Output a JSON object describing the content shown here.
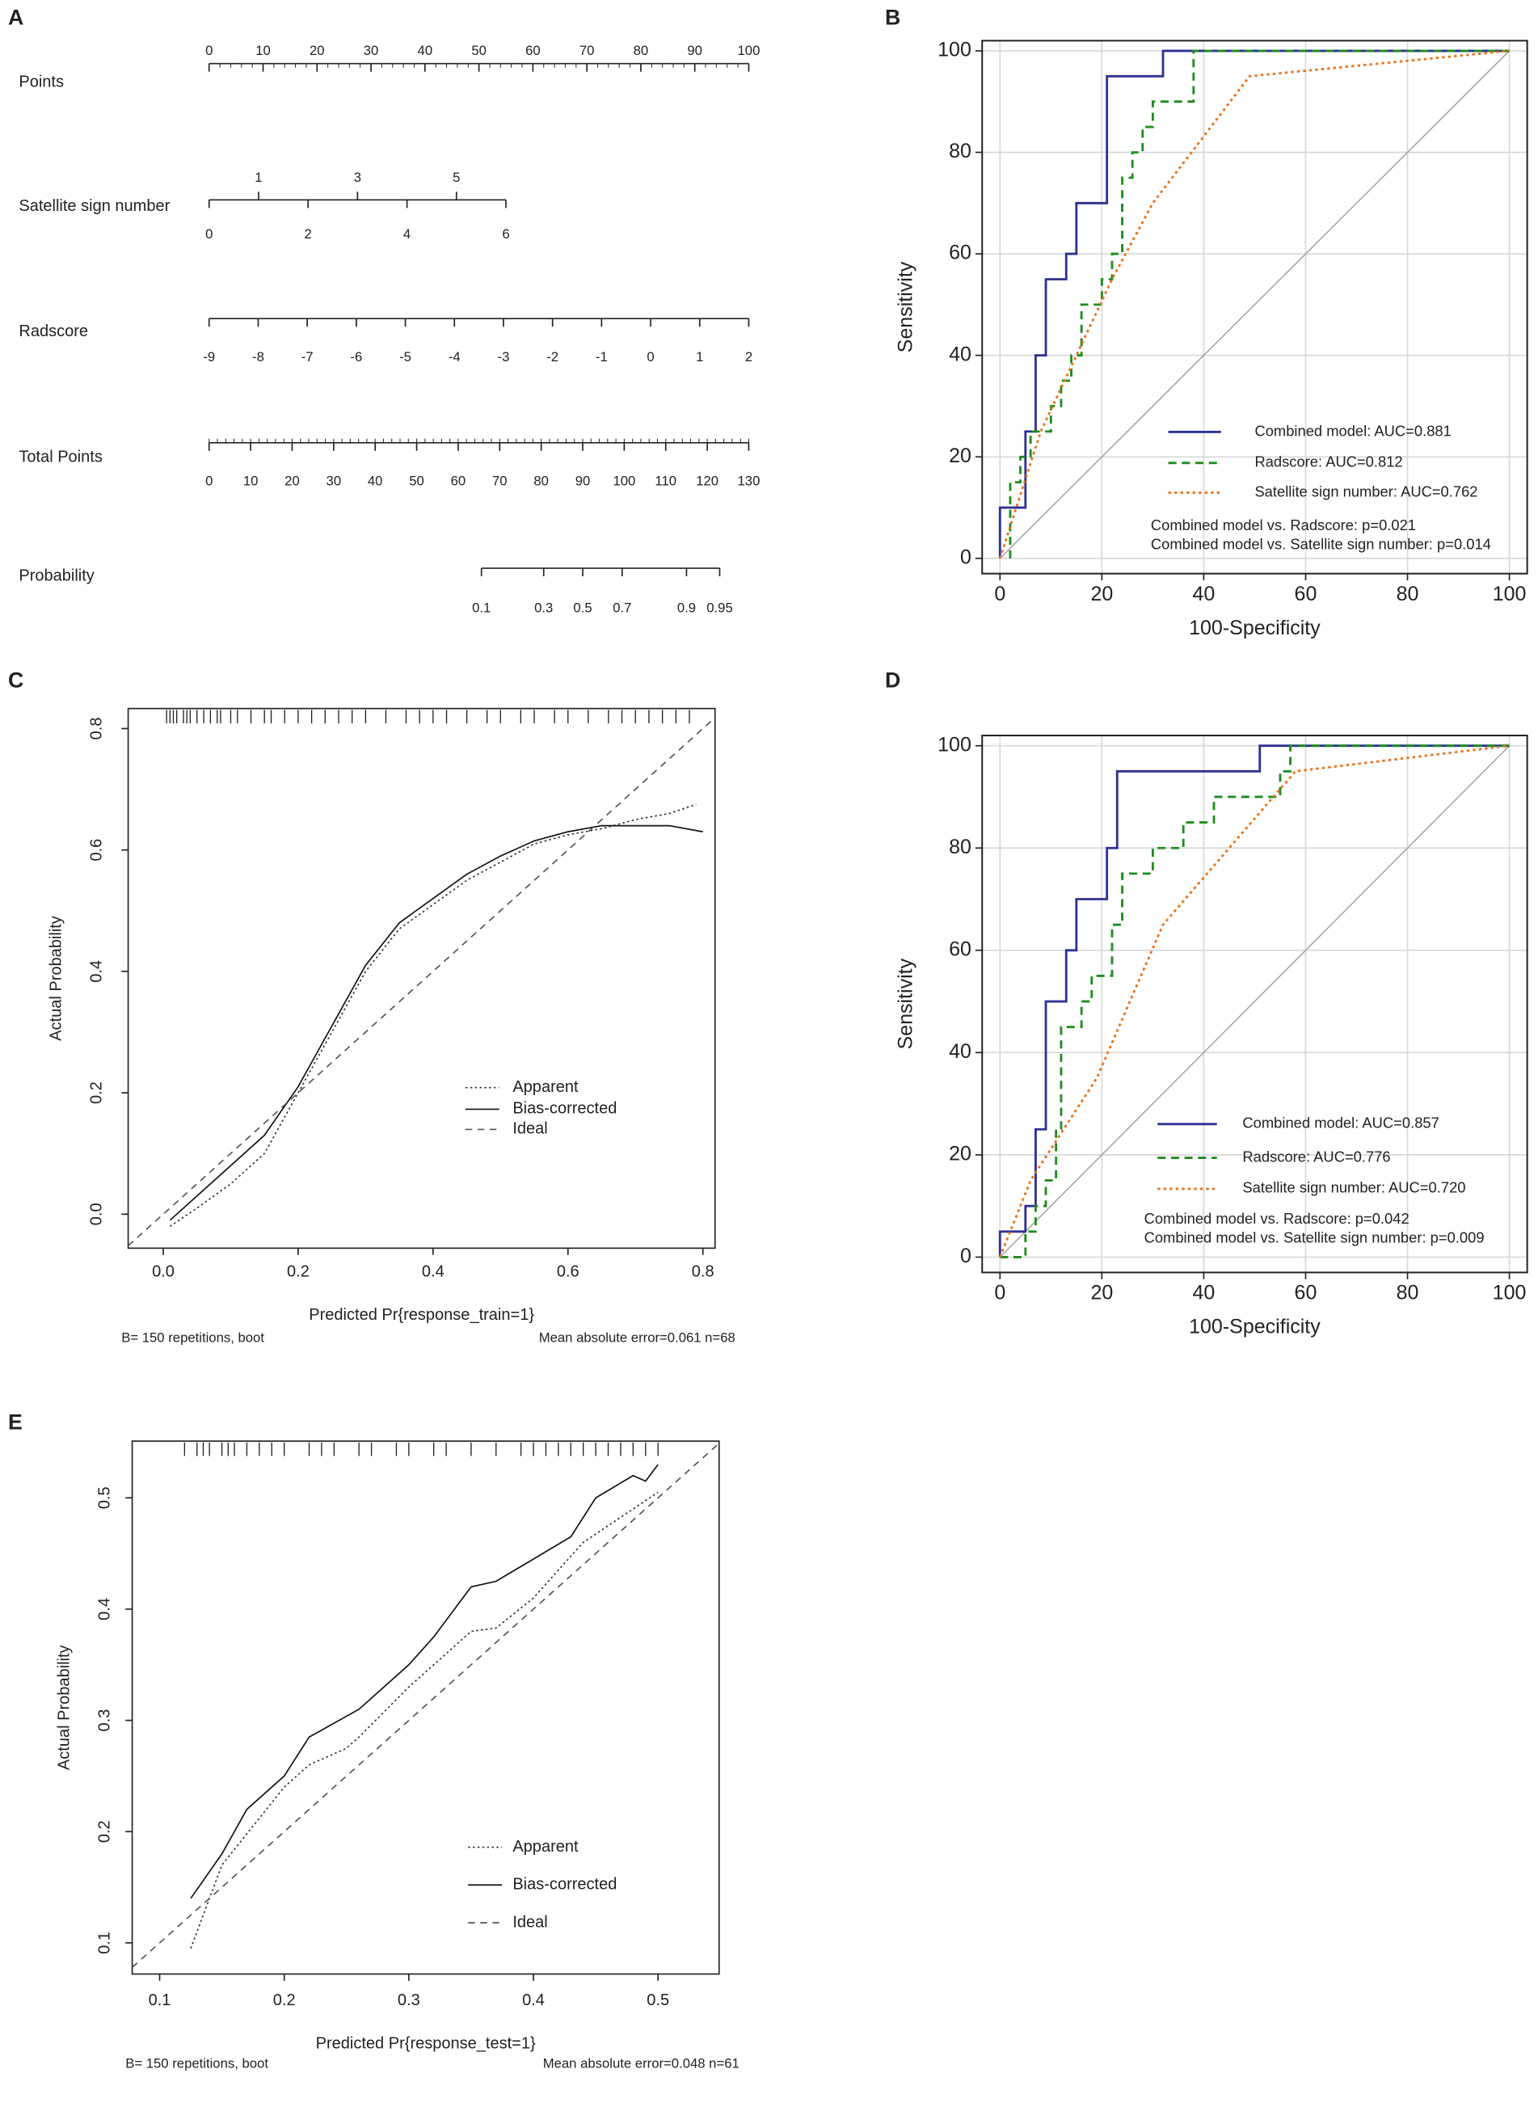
{
  "chart_data": [
    {
      "type": "nomogram",
      "label": "A",
      "rows": [
        {
          "name": "Points",
          "ticks": [
            0,
            10,
            20,
            30,
            40,
            50,
            60,
            70,
            80,
            90,
            100
          ],
          "xlim": [
            0,
            100
          ],
          "points_range": [
            0,
            100
          ],
          "minor_step": 2,
          "label_side": "above"
        },
        {
          "name": "Satellite sign number",
          "ticks": [
            0,
            1,
            2,
            3,
            4,
            5,
            6
          ],
          "xlim": [
            0,
            6
          ],
          "points_range": [
            0,
            55
          ],
          "label_side": "alternate"
        },
        {
          "name": "Radscore",
          "ticks": [
            -9,
            -8,
            -7,
            -6,
            -5,
            -4,
            -3,
            -2,
            -1,
            0,
            1,
            2
          ],
          "xlim": [
            -9,
            2
          ],
          "points_range": [
            0,
            100
          ],
          "label_side": "below"
        },
        {
          "name": "Total Points",
          "ticks": [
            0,
            10,
            20,
            30,
            40,
            50,
            60,
            70,
            80,
            90,
            100,
            110,
            120,
            130
          ],
          "xlim": [
            0,
            130
          ],
          "points_range": [
            0,
            100
          ],
          "minor_step": 2,
          "label_side": "below"
        },
        {
          "name": "Probability",
          "ticks": [
            0.1,
            0.3,
            0.5,
            0.7,
            0.9,
            0.95
          ],
          "total_points": [
            65.6,
            80.6,
            90,
            99.5,
            115,
            123
          ],
          "label_side": "below"
        }
      ]
    },
    {
      "type": "roc",
      "label": "B",
      "x_label": "100-Specificity",
      "y_label": "Sensitivity",
      "xlim": [
        -3.5,
        103.5
      ],
      "ylim": [
        -3,
        102
      ],
      "xticks": [
        0,
        20,
        40,
        60,
        80,
        100
      ],
      "yticks": [
        0,
        20,
        40,
        60,
        80,
        100
      ],
      "grid": true,
      "diagonal": true,
      "series": [
        {
          "name": "Combined model: AUC=0.881",
          "color": "#2e3192",
          "dash": "solid",
          "x": [
            0,
            0,
            5,
            5,
            7,
            7,
            9,
            9,
            13,
            13,
            15,
            15,
            21,
            21,
            32,
            32,
            100
          ],
          "values": [
            0,
            10,
            10,
            25,
            25,
            40,
            40,
            55,
            55,
            60,
            60,
            70,
            70,
            95,
            95,
            100,
            100
          ]
        },
        {
          "name": "Radscore: AUC=0.812",
          "color": "#1e8c1e",
          "dash": "dashed",
          "x": [
            2,
            2,
            4,
            4,
            6,
            6,
            10,
            10,
            12,
            12,
            14,
            14,
            16,
            16,
            20,
            20,
            22,
            22,
            24,
            24,
            26,
            26,
            28,
            28,
            30,
            30,
            38,
            38,
            100
          ],
          "values": [
            0,
            15,
            15,
            20,
            20,
            25,
            25,
            30,
            30,
            35,
            35,
            40,
            40,
            50,
            50,
            55,
            55,
            60,
            60,
            75,
            75,
            80,
            80,
            85,
            85,
            90,
            90,
            100,
            100
          ]
        },
        {
          "name": "Satellite sign number: AUC=0.762",
          "color": "#e8731c",
          "dash": "dotted",
          "x": [
            0,
            8,
            22,
            30,
            49,
            100
          ],
          "values": [
            0,
            25,
            55,
            70,
            95,
            100
          ]
        }
      ],
      "annotations": [
        "Combined model vs. Radscore: p=0.021",
        "Combined model vs. Satellite sign number: p=0.014"
      ]
    },
    {
      "type": "calibration",
      "label": "C",
      "x_label": "Predicted Pr{response_train=1}",
      "y_label": "Actual Probability",
      "xlim": [
        -0.052,
        0.818
      ],
      "ylim": [
        -0.056,
        0.833
      ],
      "xticks": [
        {
          "value": 0,
          "label": "0.0"
        },
        0.2,
        0.4,
        0.6,
        0.8
      ],
      "yticks": [
        {
          "value": 0,
          "label": "0.0"
        },
        0.2,
        0.4,
        0.6,
        0.8
      ],
      "rug": [
        0.005,
        0.01,
        0.015,
        0.02,
        0.03,
        0.035,
        0.04,
        0.05,
        0.06,
        0.07,
        0.08,
        0.085,
        0.1,
        0.11,
        0.13,
        0.15,
        0.16,
        0.18,
        0.2,
        0.22,
        0.24,
        0.26,
        0.28,
        0.3,
        0.33,
        0.36,
        0.38,
        0.4,
        0.42,
        0.45,
        0.48,
        0.5,
        0.53,
        0.55,
        0.58,
        0.6,
        0.63,
        0.66,
        0.68,
        0.7,
        0.72,
        0.74,
        0.76,
        0.78
      ],
      "series": [
        {
          "name": "Apparent",
          "color": "#333333",
          "dash": "dotted",
          "x": [
            0.01,
            0.05,
            0.1,
            0.15,
            0.2,
            0.25,
            0.3,
            0.35,
            0.4,
            0.45,
            0.5,
            0.55,
            0.6,
            0.65,
            0.7,
            0.75,
            0.79
          ],
          "values": [
            -0.02,
            0.01,
            0.05,
            0.1,
            0.2,
            0.3,
            0.4,
            0.47,
            0.51,
            0.55,
            0.58,
            0.61,
            0.625,
            0.635,
            0.65,
            0.66,
            0.675
          ]
        },
        {
          "name": "Bias-corrected",
          "color": "#111111",
          "dash": "solid",
          "x": [
            0.01,
            0.05,
            0.1,
            0.15,
            0.2,
            0.25,
            0.3,
            0.35,
            0.4,
            0.45,
            0.5,
            0.55,
            0.6,
            0.65,
            0.7,
            0.75,
            0.8
          ],
          "values": [
            -0.01,
            0.03,
            0.08,
            0.13,
            0.21,
            0.31,
            0.41,
            0.48,
            0.52,
            0.56,
            0.59,
            0.615,
            0.63,
            0.64,
            0.64,
            0.64,
            0.63
          ]
        },
        {
          "name": "Ideal",
          "color": "#555555",
          "dash": "dashed",
          "x": [
            -0.052,
            0.818
          ],
          "values": [
            -0.052,
            0.818
          ]
        }
      ],
      "footer_left": "B= 150 repetitions, boot",
      "footer_right": "Mean absolute error=0.061 n=68"
    },
    {
      "type": "roc",
      "label": "D",
      "x_label": "100-Specificity",
      "y_label": "Sensitivity",
      "xlim": [
        -3.5,
        103.5
      ],
      "ylim": [
        -3,
        102
      ],
      "xticks": [
        0,
        20,
        40,
        60,
        80,
        100
      ],
      "yticks": [
        0,
        20,
        40,
        60,
        80,
        100
      ],
      "grid": true,
      "diagonal": true,
      "series": [
        {
          "name": "Combined model: AUC=0.857",
          "color": "#2e3192",
          "dash": "solid",
          "x": [
            0,
            0,
            5,
            5,
            7,
            7,
            9,
            9,
            13,
            13,
            15,
            15,
            21,
            21,
            23,
            23,
            51,
            51,
            100
          ],
          "values": [
            0,
            5,
            5,
            10,
            10,
            25,
            25,
            50,
            50,
            60,
            60,
            70,
            70,
            80,
            80,
            95,
            95,
            100,
            100
          ]
        },
        {
          "name": "Radscore: AUC=0.776",
          "color": "#1e8c1e",
          "dash": "dashed",
          "x": [
            0,
            5,
            5,
            7,
            7,
            9,
            9,
            11,
            11,
            12,
            12,
            16,
            16,
            18,
            18,
            22,
            22,
            24,
            24,
            30,
            30,
            36,
            36,
            42,
            42,
            55,
            55,
            57,
            57,
            100
          ],
          "values": [
            0,
            0,
            5,
            5,
            10,
            10,
            15,
            15,
            25,
            25,
            45,
            45,
            50,
            50,
            55,
            55,
            65,
            65,
            75,
            75,
            80,
            80,
            85,
            85,
            90,
            90,
            95,
            95,
            100,
            100
          ]
        },
        {
          "name": "Satellite sign number: AUC=0.720",
          "color": "#e8731c",
          "dash": "dotted",
          "x": [
            0,
            6,
            19,
            32,
            58,
            100
          ],
          "values": [
            0,
            15,
            35,
            65,
            95,
            100
          ]
        }
      ],
      "annotations": [
        "Combined model vs. Radscore: p=0.042",
        "Combined model vs. Satellite sign number: p=0.009"
      ]
    },
    {
      "type": "calibration",
      "label": "E",
      "x_label": "Predicted Pr{response_test=1}",
      "y_label": "Actual Probability",
      "xlim": [
        0.078,
        0.549
      ],
      "ylim": [
        0.072,
        0.551
      ],
      "xticks": [
        0.1,
        0.2,
        0.3,
        0.4,
        0.5
      ],
      "yticks": [
        0.1,
        0.2,
        0.3,
        0.4,
        0.5
      ],
      "rug": [
        0.12,
        0.13,
        0.135,
        0.14,
        0.15,
        0.155,
        0.16,
        0.17,
        0.18,
        0.19,
        0.2,
        0.22,
        0.23,
        0.24,
        0.26,
        0.27,
        0.29,
        0.3,
        0.32,
        0.33,
        0.35,
        0.37,
        0.39,
        0.4,
        0.41,
        0.42,
        0.43,
        0.44,
        0.45,
        0.46,
        0.47,
        0.48,
        0.49,
        0.5
      ],
      "series": [
        {
          "name": "Apparent",
          "color": "#333333",
          "dash": "dotted",
          "x": [
            0.125,
            0.15,
            0.2,
            0.22,
            0.25,
            0.26,
            0.3,
            0.35,
            0.37,
            0.4,
            0.44,
            0.5
          ],
          "values": [
            0.095,
            0.17,
            0.24,
            0.26,
            0.275,
            0.285,
            0.33,
            0.38,
            0.383,
            0.41,
            0.46,
            0.505
          ]
        },
        {
          "name": "Bias-corrected",
          "color": "#111111",
          "dash": "solid",
          "x": [
            0.125,
            0.15,
            0.17,
            0.2,
            0.22,
            0.26,
            0.3,
            0.32,
            0.35,
            0.37,
            0.4,
            0.43,
            0.45,
            0.48,
            0.49,
            0.5
          ],
          "values": [
            0.14,
            0.18,
            0.22,
            0.25,
            0.285,
            0.31,
            0.35,
            0.375,
            0.42,
            0.425,
            0.445,
            0.465,
            0.5,
            0.52,
            0.515,
            0.53
          ]
        },
        {
          "name": "Ideal",
          "color": "#555555",
          "dash": "dashed",
          "x": [
            0.078,
            0.549
          ],
          "values": [
            0.078,
            0.549
          ]
        }
      ],
      "footer_left": "B= 150 repetitions, boot",
      "footer_right": "Mean absolute error=0.048 n=61"
    }
  ]
}
